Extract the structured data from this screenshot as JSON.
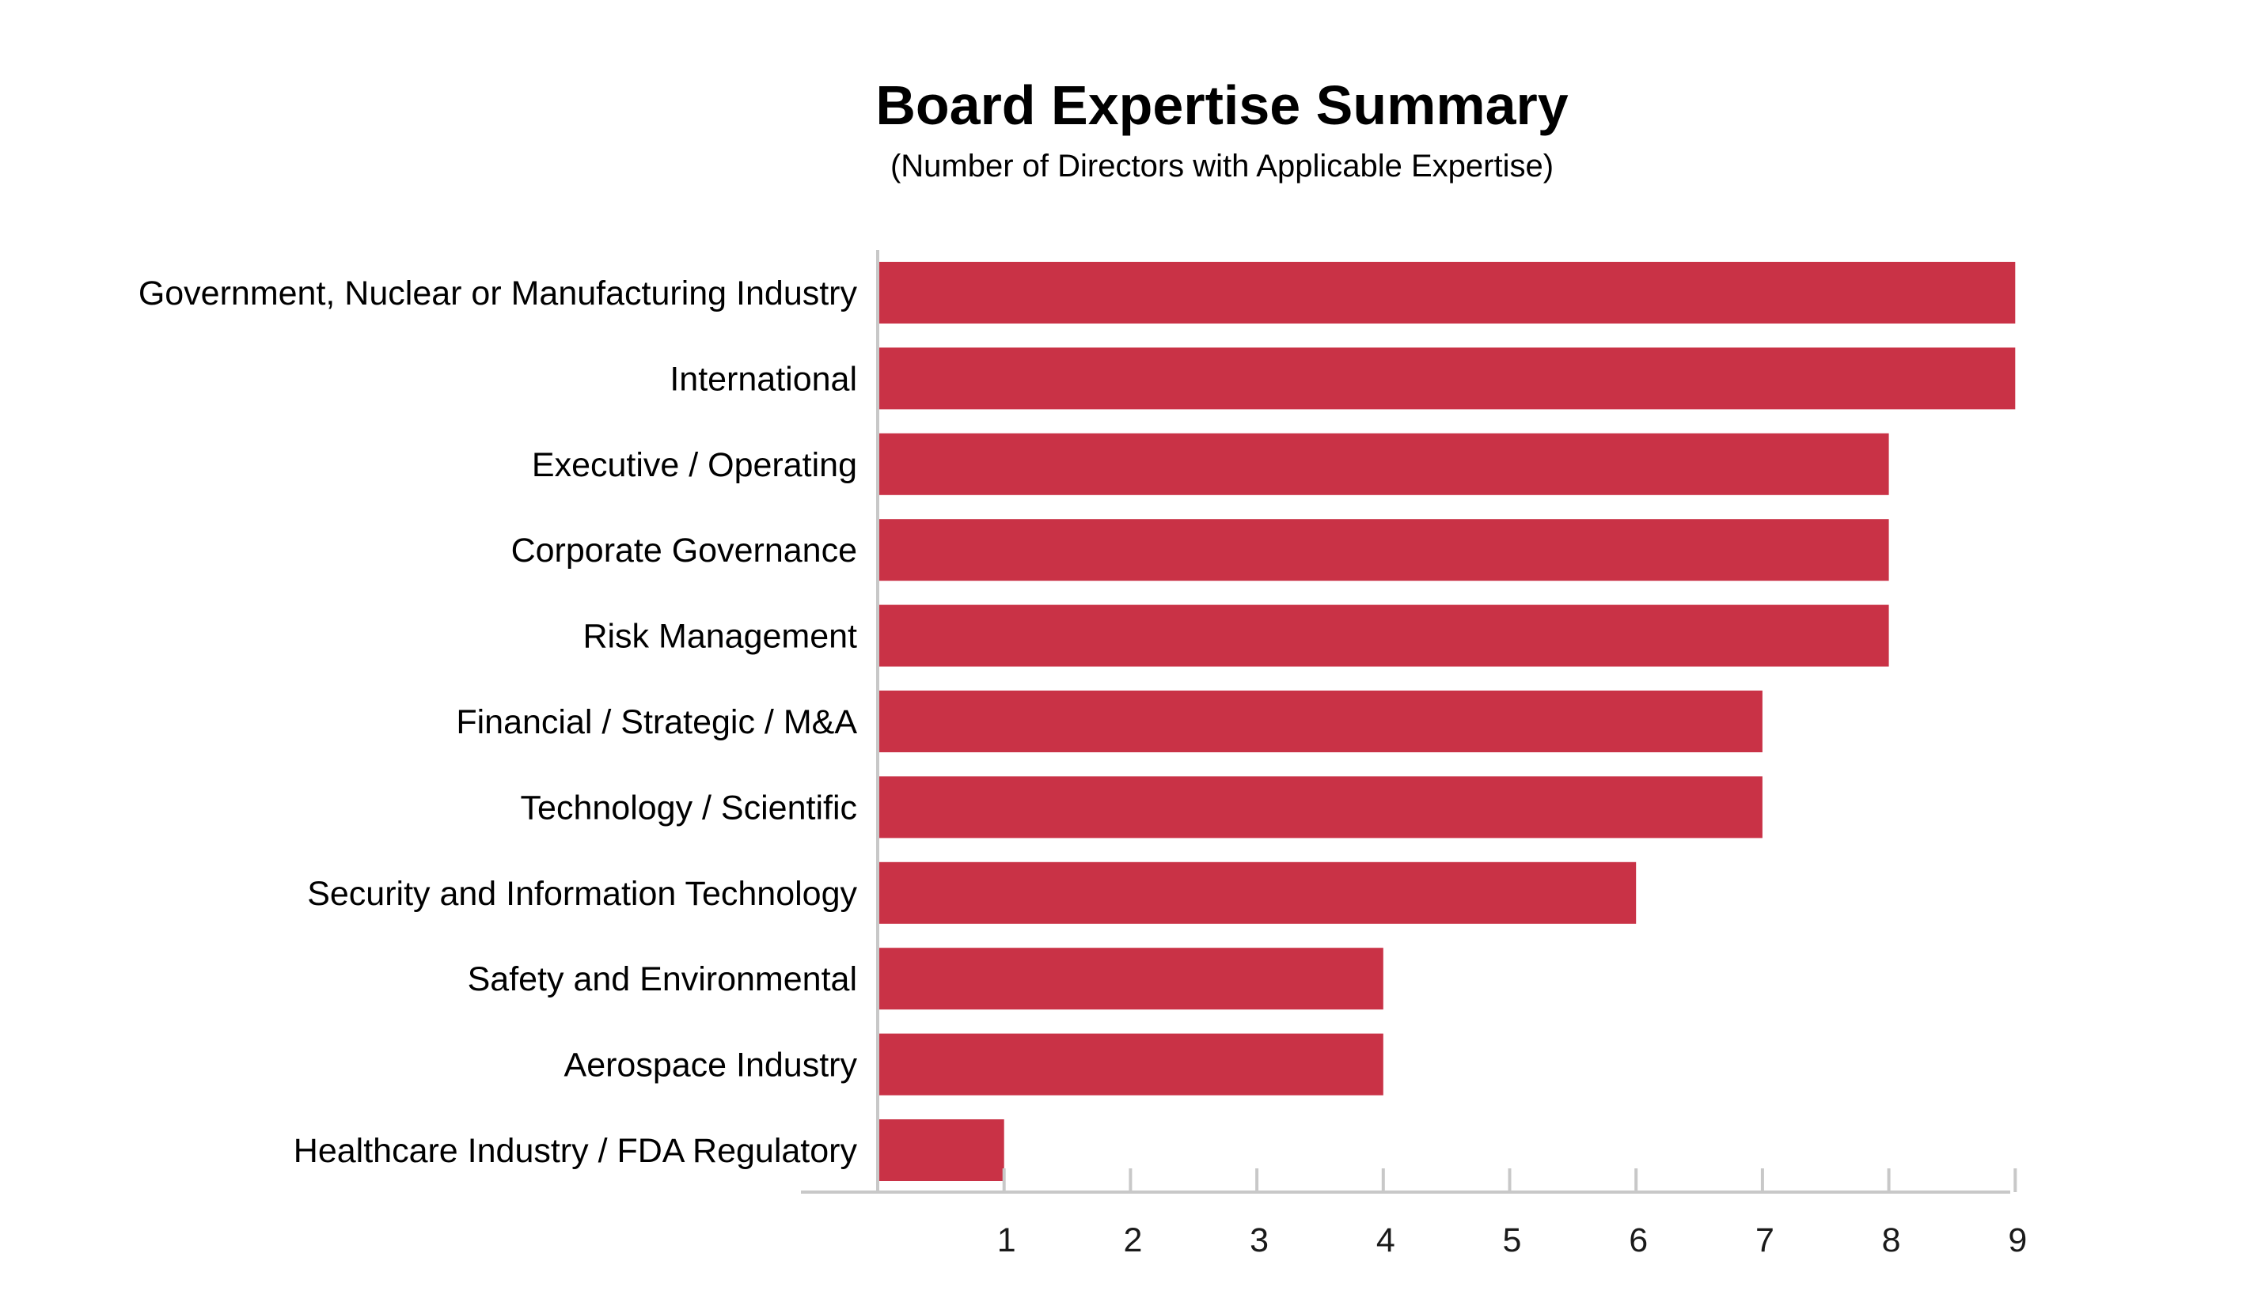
{
  "chart_data": {
    "type": "bar",
    "orientation": "horizontal",
    "title": "Board Expertise Summary",
    "subtitle": "(Number of Directors with Applicable Expertise)",
    "categories": [
      "Government, Nuclear or Manufacturing Industry",
      "International",
      "Executive / Operating",
      "Corporate Governance",
      "Risk Management",
      "Financial / Strategic / M&A",
      "Technology / Scientific",
      "Security and Information Technology",
      "Safety and Environmental",
      "Aerospace Industry",
      "Healthcare Industry / FDA Regulatory"
    ],
    "values": [
      9,
      9,
      8,
      8,
      8,
      7,
      7,
      6,
      4,
      4,
      1
    ],
    "xlim": [
      0,
      9
    ],
    "xticks": [
      1,
      2,
      3,
      4,
      5,
      6,
      7,
      8,
      9
    ],
    "grid": false,
    "legend": "none",
    "colors": {
      "bar": "#c93246",
      "axis": "#c8c8c8"
    }
  }
}
